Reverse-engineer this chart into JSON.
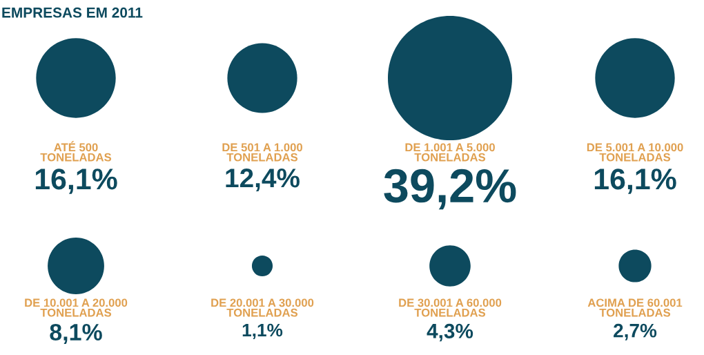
{
  "chart_data": {
    "type": "other",
    "title": "EMPRESAS EM 2011",
    "categories": [
      "ATÉ 500\nTONELADAS",
      "DE 501 A 1.000\nTONELADAS",
      "DE 1.001 A 5.000\nTONELADAS",
      "DE 5.001 A 10.000\nTONELADAS",
      "DE 10.001 A 20.000\nTONELADAS",
      "DE 20.001 A 30.000\nTONELADAS",
      "DE 30.001 A 60.000\nTONELADAS",
      "ACIMA DE 60.001\nTONELADAS"
    ],
    "values": [
      16.1,
      12.4,
      39.2,
      16.1,
      8.1,
      1.1,
      4.3,
      2.7
    ],
    "value_labels": [
      "16,1%",
      "12,4%",
      "39,2%",
      "16,1%",
      "8,1%",
      "1,1%",
      "4,3%",
      "2,7%"
    ],
    "color": "#0d4a5e"
  }
}
